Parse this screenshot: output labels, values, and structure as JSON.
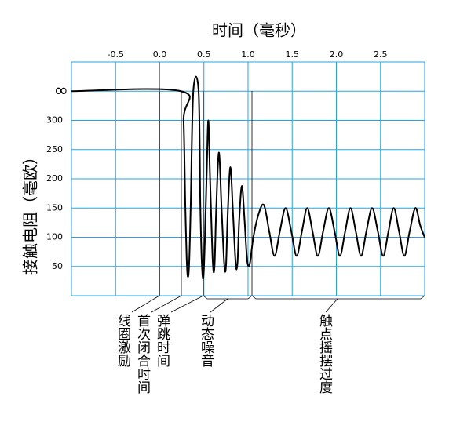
{
  "chart_data": {
    "type": "line",
    "x_label": "时间（毫秒）",
    "y_label": "接触电阻（毫欧）",
    "x": [
      -1.0,
      0.24,
      0.27,
      0.29,
      0.31,
      0.33,
      0.35,
      0.38,
      0.44,
      0.46,
      0.48,
      0.5,
      0.53,
      0.55,
      0.57,
      0.6,
      0.62,
      0.64,
      0.67,
      0.7,
      0.73,
      0.75,
      0.77,
      0.8,
      0.83,
      0.86,
      0.88,
      0.9,
      0.93,
      0.96,
      0.99,
      1.02,
      1.06,
      1.12,
      1.18,
      1.24,
      1.3,
      1.36,
      1.425,
      1.49,
      1.55,
      1.61,
      1.67,
      1.73,
      1.79,
      1.85,
      1.915,
      1.98,
      2.04,
      2.1,
      2.16,
      2.22,
      2.28,
      2.34,
      2.405,
      2.47,
      2.53,
      2.59,
      2.65,
      2.71,
      2.77,
      2.83,
      2.895,
      2.95,
      3.0
    ],
    "values": [
      350,
      350,
      300,
      150,
      45,
      45,
      150,
      350,
      350,
      150,
      45,
      45,
      200,
      300,
      200,
      60,
      50,
      150,
      245,
      150,
      55,
      50,
      140,
      220,
      140,
      55,
      55,
      130,
      188,
      130,
      60,
      55,
      100,
      140,
      155,
      110,
      68,
      110,
      150,
      110,
      68,
      110,
      150,
      110,
      68,
      110,
      150,
      110,
      68,
      110,
      150,
      110,
      68,
      110,
      150,
      110,
      68,
      110,
      150,
      110,
      68,
      110,
      150,
      120,
      100
    ],
    "color": "#000000",
    "xlim": [
      -1,
      3
    ],
    "ylim": [
      0,
      400
    ],
    "xticks": [
      -0.5,
      {
        "value": 0,
        "label": "0.0"
      },
      0.5,
      {
        "value": 1,
        "label": "1.0"
      },
      1.5,
      {
        "value": 2,
        "label": "2.0"
      },
      2.5
    ],
    "yticks": [
      50,
      100,
      150,
      200,
      250,
      300,
      {
        "value": 350,
        "label": "∞"
      }
    ],
    "grid": true,
    "annotations": [
      "线圈激励",
      "首次闭合时间",
      "弹跳时间",
      "动态噪音",
      "触点摇摆过度"
    ]
  }
}
